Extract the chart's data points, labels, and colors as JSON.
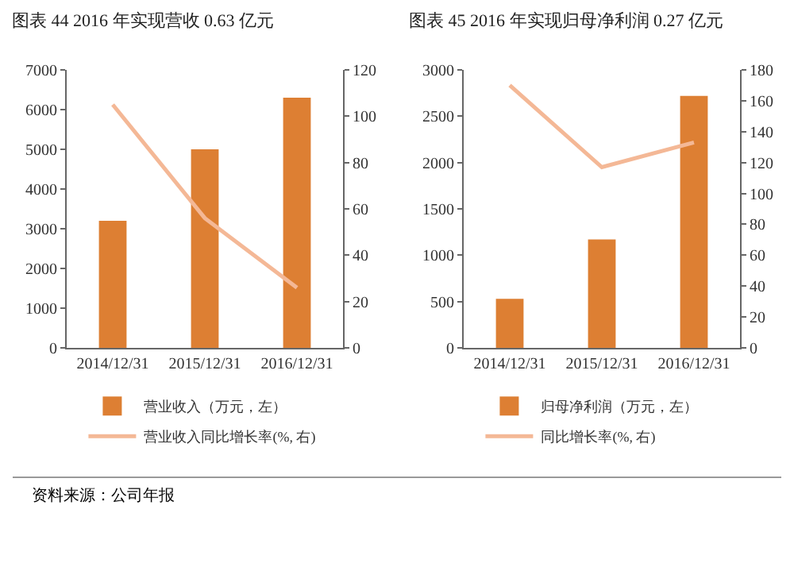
{
  "chart_data": [
    {
      "type": "bar",
      "title": "图表 44 2016 年实现营收 0.63 亿元",
      "categories": [
        "2014/12/31",
        "2015/12/31",
        "2016/12/31"
      ],
      "series": [
        {
          "name": "营业收入（万元，左）",
          "color": "#dd7f33",
          "values": [
            3200,
            5000,
            6300
          ]
        },
        {
          "name": "营业收入同比增长率(%, 右)",
          "type": "line",
          "axis": "y2",
          "color": "#f4b896",
          "values": [
            105,
            56,
            26
          ]
        }
      ],
      "ylim": [
        0,
        7000
      ],
      "yticks": [
        0,
        1000,
        2000,
        3000,
        4000,
        5000,
        6000,
        7000
      ],
      "y2lim": [
        0,
        120
      ],
      "y2ticks": [
        0,
        20,
        40,
        60,
        80,
        100,
        120
      ],
      "grid": false,
      "legend": "bottom",
      "marker": "none",
      "line_style": "solid",
      "annotations": [
        "资料来源：公司年报"
      ]
    },
    {
      "type": "bar",
      "title": "图表 45 2016 年实现归母净利润 0.27 亿元",
      "categories": [
        "2014/12/31",
        "2015/12/31",
        "2016/12/31"
      ],
      "series": [
        {
          "name": "归母净利润（万元，左）",
          "color": "#dd7f33",
          "values": [
            530,
            1170,
            2720
          ]
        },
        {
          "name": "同比增长率(%, 右)",
          "type": "line",
          "axis": "y2",
          "color": "#f4b896",
          "values": [
            170,
            117,
            133
          ]
        }
      ],
      "ylim": [
        0,
        3000
      ],
      "yticks": [
        0,
        500,
        1000,
        1500,
        2000,
        2500,
        3000
      ],
      "y2lim": [
        0,
        180
      ],
      "y2ticks": [
        0,
        20,
        40,
        60,
        80,
        100,
        120,
        140,
        160,
        180
      ],
      "grid": false,
      "legend": "bottom",
      "marker": "none",
      "line_style": "solid"
    }
  ]
}
